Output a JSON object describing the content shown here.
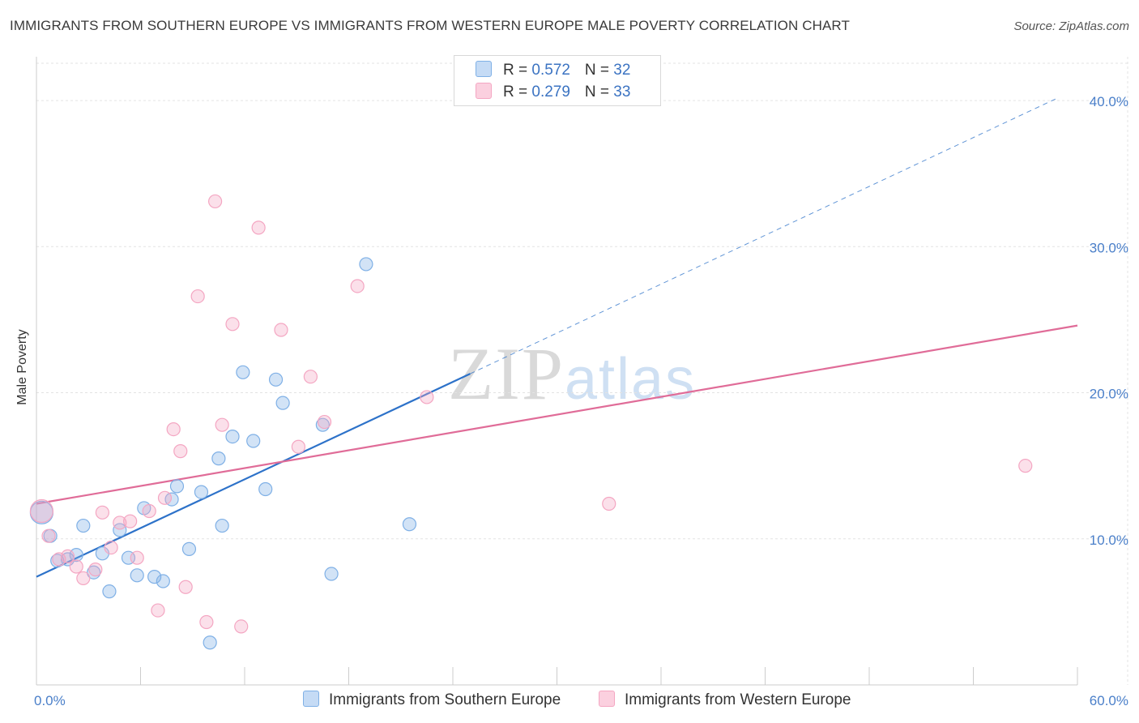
{
  "chart_data": {
    "type": "scatter",
    "title": "IMMIGRANTS FROM SOUTHERN EUROPE VS IMMIGRANTS FROM WESTERN EUROPE MALE POVERTY CORRELATION CHART",
    "source": "Source: ZipAtlas.com",
    "ylabel": "Male Poverty",
    "xlim": [
      0,
      60
    ],
    "ylim": [
      0,
      43
    ],
    "x_tick_labels": [
      "0.0%",
      "60.0%"
    ],
    "y_ticks": [
      10,
      20,
      30,
      40
    ],
    "y_tick_labels": [
      "10.0%",
      "20.0%",
      "30.0%",
      "40.0%"
    ],
    "legend": {
      "rows": [
        {
          "r_label": "R = ",
          "r_value": "0.572",
          "n_label": "N = ",
          "n_value": "32"
        },
        {
          "r_label": "R = ",
          "r_value": "0.279",
          "n_label": "N = ",
          "n_value": "33"
        }
      ]
    },
    "watermark": {
      "zip": "ZIP",
      "atlas": "atlas"
    },
    "series": [
      {
        "name": "Immigrants from Southern Europe",
        "color": "#7fb0e6",
        "line_color": "#2d72c9",
        "trend": {
          "x0": 0,
          "y0": 7.4,
          "x1": 25.0,
          "y1": 21.3,
          "dash_to_x": 58.9,
          "dash_to_y": 40.2
        },
        "points": [
          [
            0.3,
            11.8
          ],
          [
            0.8,
            10.2
          ],
          [
            1.2,
            8.5
          ],
          [
            1.8,
            8.6
          ],
          [
            2.3,
            8.9
          ],
          [
            2.7,
            10.9
          ],
          [
            3.3,
            7.7
          ],
          [
            3.8,
            9.0
          ],
          [
            4.2,
            6.4
          ],
          [
            4.8,
            10.6
          ],
          [
            5.3,
            8.7
          ],
          [
            5.8,
            7.5
          ],
          [
            6.2,
            12.1
          ],
          [
            6.8,
            7.4
          ],
          [
            7.3,
            7.1
          ],
          [
            7.8,
            12.7
          ],
          [
            8.1,
            13.6
          ],
          [
            8.8,
            9.3
          ],
          [
            9.5,
            13.2
          ],
          [
            10.0,
            2.9
          ],
          [
            10.5,
            15.5
          ],
          [
            10.7,
            10.9
          ],
          [
            11.3,
            17.0
          ],
          [
            11.9,
            21.4
          ],
          [
            12.5,
            16.7
          ],
          [
            13.2,
            13.4
          ],
          [
            13.8,
            20.9
          ],
          [
            14.2,
            19.3
          ],
          [
            16.5,
            17.8
          ],
          [
            17.0,
            7.6
          ],
          [
            19.0,
            28.8
          ],
          [
            21.5,
            11.0
          ]
        ]
      },
      {
        "name": "Immigrants from Western Europe",
        "color": "#f4a6c2",
        "line_color": "#e06c98",
        "trend": {
          "x0": 0,
          "y0": 12.4,
          "x1": 60,
          "y1": 24.6
        },
        "points": [
          [
            0.3,
            11.9
          ],
          [
            0.7,
            10.2
          ],
          [
            1.3,
            8.6
          ],
          [
            1.8,
            8.8
          ],
          [
            2.3,
            8.1
          ],
          [
            2.7,
            7.3
          ],
          [
            3.4,
            7.9
          ],
          [
            3.8,
            11.8
          ],
          [
            4.3,
            9.4
          ],
          [
            4.8,
            11.1
          ],
          [
            5.4,
            11.2
          ],
          [
            5.8,
            8.7
          ],
          [
            6.5,
            11.9
          ],
          [
            7.0,
            5.1
          ],
          [
            7.4,
            12.8
          ],
          [
            7.9,
            17.5
          ],
          [
            8.3,
            16.0
          ],
          [
            8.6,
            6.7
          ],
          [
            9.3,
            26.6
          ],
          [
            9.8,
            4.3
          ],
          [
            10.3,
            33.1
          ],
          [
            10.7,
            17.8
          ],
          [
            11.3,
            24.7
          ],
          [
            11.8,
            4.0
          ],
          [
            12.8,
            31.3
          ],
          [
            14.1,
            24.3
          ],
          [
            15.1,
            16.3
          ],
          [
            15.8,
            21.1
          ],
          [
            16.6,
            18.0
          ],
          [
            18.5,
            27.3
          ],
          [
            22.5,
            19.7
          ],
          [
            33.0,
            12.4
          ],
          [
            57.0,
            15.0
          ]
        ]
      }
    ]
  }
}
